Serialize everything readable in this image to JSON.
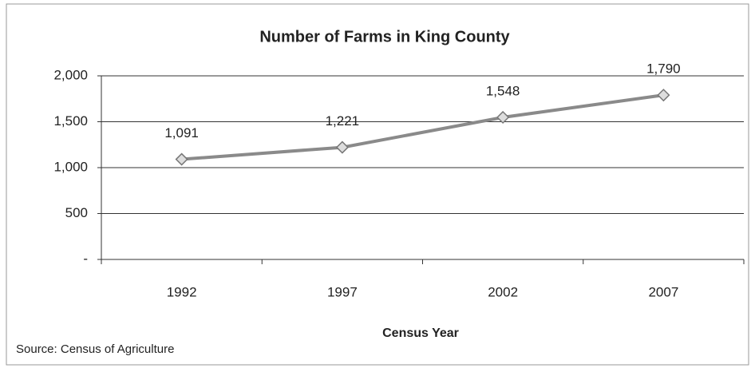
{
  "chart_data": {
    "type": "line",
    "title": "Number of  Farms in King County",
    "x_label": "Census Year",
    "source": "Source: Census of Agriculture",
    "categories": [
      "1992",
      "1997",
      "2002",
      "2007"
    ],
    "series": [
      {
        "name": "Farms",
        "color": "#8a8a8a",
        "values": [
          1091,
          1221,
          1548,
          1790
        ],
        "value_labels": [
          "1,091",
          "1,221",
          "1,548",
          "1,790"
        ]
      }
    ],
    "ylim": [
      0,
      2000
    ],
    "yticks": [
      {
        "value": 0,
        "label": "-"
      },
      500,
      {
        "value": 1000,
        "label": "1,000"
      },
      {
        "value": 1500,
        "label": "1,500"
      },
      {
        "value": 2000,
        "label": "2,000"
      }
    ],
    "grid": true
  }
}
